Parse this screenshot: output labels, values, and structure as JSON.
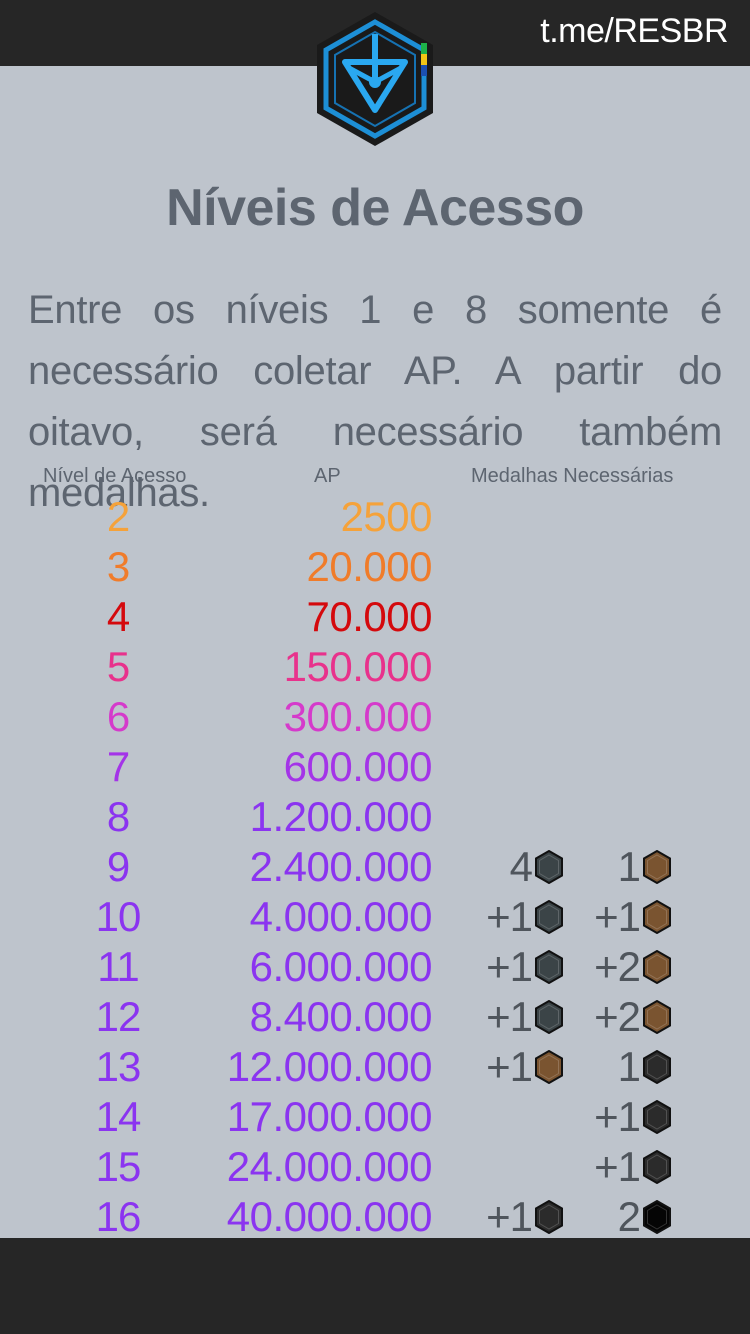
{
  "header": {
    "channel": "t.me/RESBR"
  },
  "title": "Níveis de Acesso",
  "intro": "Entre os níveis 1 e 8 somente é necessário coletar AP. A partir do oitavo, será necessário também medalhas.",
  "columns": {
    "level": "Nível de Acesso",
    "ap": "AP",
    "medals": "Medalhas Necessárias"
  },
  "colors": {
    "background": "#bec4cc",
    "bar": "#262626",
    "text": "#5d6570",
    "medal_silver": "#3b4447",
    "medal_bronze": "#7a5430",
    "medal_platinum": "#2b2b2b",
    "medal_black": "#050505"
  },
  "rows": [
    {
      "level": "2",
      "ap": "2500",
      "color": "#f5a23a"
    },
    {
      "level": "3",
      "ap": "20.000",
      "color": "#f07c2a"
    },
    {
      "level": "4",
      "ap": "70.000",
      "color": "#d4090d"
    },
    {
      "level": "5",
      "ap": "150.000",
      "color": "#e8328c"
    },
    {
      "level": "6",
      "ap": "300.000",
      "color": "#d53acb"
    },
    {
      "level": "7",
      "ap": "600.000",
      "color": "#a434e8"
    },
    {
      "level": "8",
      "ap": "1.200.000",
      "color": "#8b34f0"
    },
    {
      "level": "9",
      "ap": "2.400.000",
      "color": "#8b34f0",
      "medal1": {
        "count": "4",
        "kind": "silver-medal-icon"
      },
      "medal2": {
        "count": "1",
        "kind": "bronze-medal-icon"
      }
    },
    {
      "level": "10",
      "ap": "4.000.000",
      "color": "#8b34f0",
      "medal1": {
        "count": "+1",
        "kind": "silver-medal-icon"
      },
      "medal2": {
        "count": "+1",
        "kind": "bronze-medal-icon"
      }
    },
    {
      "level": "11",
      "ap": "6.000.000",
      "color": "#8b34f0",
      "medal1": {
        "count": "+1",
        "kind": "silver-medal-icon"
      },
      "medal2": {
        "count": "+2",
        "kind": "bronze-medal-icon"
      }
    },
    {
      "level": "12",
      "ap": "8.400.000",
      "color": "#8b34f0",
      "medal1": {
        "count": "+1",
        "kind": "silver-medal-icon"
      },
      "medal2": {
        "count": "+2",
        "kind": "bronze-medal-icon"
      }
    },
    {
      "level": "13",
      "ap": "12.000.000",
      "color": "#8b34f0",
      "medal1": {
        "count": "+1",
        "kind": "bronze-medal-icon"
      },
      "medal2": {
        "count": "1",
        "kind": "platinum-medal-icon"
      }
    },
    {
      "level": "14",
      "ap": "17.000.000",
      "color": "#8b34f0",
      "medal2": {
        "count": "+1",
        "kind": "platinum-medal-icon"
      }
    },
    {
      "level": "15",
      "ap": "24.000.000",
      "color": "#8b34f0",
      "medal2": {
        "count": "+1",
        "kind": "platinum-medal-icon"
      }
    },
    {
      "level": "16",
      "ap": "40.000.000",
      "color": "#8b34f0",
      "medal1": {
        "count": "+1",
        "kind": "platinum-medal-icon"
      },
      "medal2": {
        "count": "2",
        "kind": "black-medal-icon"
      }
    }
  ]
}
